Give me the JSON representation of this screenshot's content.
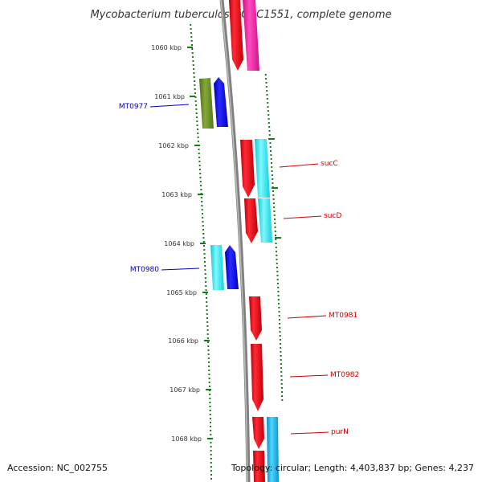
{
  "title": "Mycobacterium tuberculosis CDC1551, complete genome",
  "footer": {
    "accession": "Accession: NC_002755",
    "summary": "Topology: circular; Length: 4,403,837 bp; Genes: 4,237"
  },
  "colors": {
    "tick": "#1a7a1a",
    "backbone": "#8c8c8c",
    "red": "#e8101c",
    "pink": "#ff2aa8",
    "olive": "#6b8e23",
    "blue": "#1010e0",
    "cyan": "#18e6ee",
    "skyblue": "#10b8ee",
    "label_forward": "#cc0000",
    "label_reverse": "#0000bb"
  },
  "ticks": [
    "1060 kbp",
    "1061 kbp",
    "1062 kbp",
    "1063 kbp",
    "1064 kbp",
    "1065 kbp",
    "1066 kbp",
    "1067 kbp",
    "1068 kbp"
  ],
  "genes_labeled": {
    "forward": [
      "sucC",
      "sucD",
      "MT0981",
      "MT0982",
      "purN"
    ],
    "reverse": [
      "MT0977",
      "MT0980"
    ]
  }
}
